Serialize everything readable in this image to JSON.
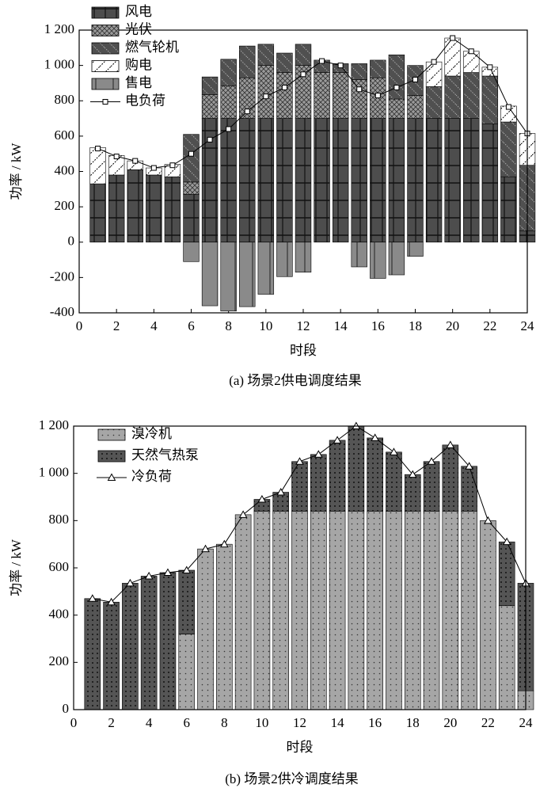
{
  "chart_data": [
    {
      "type": "bar",
      "stacked": true,
      "title": "(a)  场景2供电调度结果",
      "xlabel": "时段",
      "ylabel": "功率 / kW",
      "x": [
        1,
        2,
        3,
        4,
        5,
        6,
        7,
        8,
        9,
        10,
        11,
        12,
        13,
        14,
        15,
        16,
        17,
        18,
        19,
        20,
        21,
        22,
        23,
        24
      ],
      "xlim": [
        0,
        24
      ],
      "xticks": [
        0,
        2,
        4,
        6,
        8,
        10,
        12,
        14,
        16,
        18,
        20,
        22,
        24
      ],
      "ylim": [
        -400,
        1200
      ],
      "yticks": [
        -400,
        -200,
        0,
        200,
        400,
        600,
        800,
        {
          "value": 1000,
          "label": "1 000"
        },
        {
          "value": 1200,
          "label": "1 200"
        }
      ],
      "legend": "upper left",
      "series": [
        {
          "name": "风电",
          "color": "#4d4d4d",
          "pattern": "grid",
          "values": [
            330,
            380,
            410,
            380,
            370,
            270,
            700,
            700,
            700,
            700,
            700,
            700,
            700,
            700,
            700,
            700,
            700,
            700,
            700,
            700,
            700,
            670,
            370,
            65
          ]
        },
        {
          "name": "光伏",
          "color": "#9a9a9a",
          "pattern": "cross",
          "values": [
            0,
            0,
            0,
            0,
            0,
            70,
            135,
            185,
            230,
            300,
            260,
            300,
            260,
            260,
            220,
            230,
            110,
            130,
            0,
            0,
            0,
            0,
            0,
            0
          ]
        },
        {
          "name": "燃气轮机",
          "color": "#505050",
          "pattern": "diagonal",
          "values": [
            0,
            0,
            0,
            0,
            0,
            270,
            100,
            150,
            180,
            120,
            110,
            120,
            70,
            50,
            90,
            100,
            250,
            170,
            180,
            240,
            260,
            270,
            310,
            370
          ]
        },
        {
          "name": "购电",
          "color": "#ffffff",
          "pattern": "whitediag",
          "values": [
            205,
            110,
            50,
            40,
            70,
            0,
            0,
            0,
            0,
            0,
            0,
            0,
            0,
            0,
            0,
            0,
            0,
            0,
            140,
            215,
            120,
            50,
            90,
            180
          ]
        },
        {
          "name": "售电",
          "color": "#8a8a8a",
          "pattern": "vbar",
          "values": [
            0,
            0,
            0,
            0,
            0,
            -110,
            -360,
            -390,
            -365,
            -295,
            -195,
            -170,
            0,
            0,
            -140,
            -205,
            -185,
            -80,
            0,
            0,
            0,
            0,
            0,
            0
          ]
        },
        {
          "name": "电负荷",
          "type": "line",
          "marker": "square",
          "color": "#000000",
          "values": [
            530,
            485,
            460,
            420,
            435,
            500,
            580,
            640,
            740,
            825,
            875,
            950,
            1025,
            1000,
            865,
            830,
            875,
            920,
            1020,
            1155,
            1080,
            990,
            765,
            615
          ]
        }
      ]
    },
    {
      "type": "bar",
      "stacked": true,
      "title": "(b)  场景2供冷调度结果",
      "xlabel": "时段",
      "ylabel": "功率 / kW",
      "x": [
        1,
        2,
        3,
        4,
        5,
        6,
        7,
        8,
        9,
        10,
        11,
        12,
        13,
        14,
        15,
        16,
        17,
        18,
        19,
        20,
        21,
        22,
        23,
        24
      ],
      "xlim": [
        0,
        24
      ],
      "xticks": [
        0,
        2,
        4,
        6,
        8,
        10,
        12,
        14,
        16,
        18,
        20,
        22,
        24
      ],
      "ylim": [
        0,
        1200
      ],
      "yticks": [
        0,
        200,
        400,
        600,
        800,
        {
          "value": 1000,
          "label": "1 000"
        },
        {
          "value": 1200,
          "label": "1 200"
        }
      ],
      "legend": "upper left",
      "series": [
        {
          "name": "溴冷机",
          "color": "#a6a6a6",
          "pattern": "dotslight",
          "values": [
            0,
            0,
            0,
            0,
            0,
            320,
            680,
            700,
            825,
            840,
            840,
            840,
            840,
            840,
            840,
            840,
            840,
            840,
            840,
            840,
            840,
            800,
            440,
            80
          ]
        },
        {
          "name": "天然气热泵",
          "color": "#555555",
          "pattern": "dotsdark",
          "values": [
            470,
            455,
            535,
            565,
            580,
            270,
            0,
            0,
            0,
            50,
            80,
            210,
            240,
            300,
            360,
            310,
            250,
            155,
            210,
            280,
            190,
            0,
            270,
            455
          ]
        },
        {
          "name": "冷负荷",
          "type": "line",
          "marker": "triangle",
          "color": "#000000",
          "values": [
            470,
            455,
            535,
            565,
            580,
            590,
            680,
            700,
            825,
            890,
            920,
            1050,
            1080,
            1140,
            1200,
            1150,
            1090,
            995,
            1050,
            1120,
            1030,
            800,
            710,
            535
          ]
        }
      ]
    }
  ]
}
